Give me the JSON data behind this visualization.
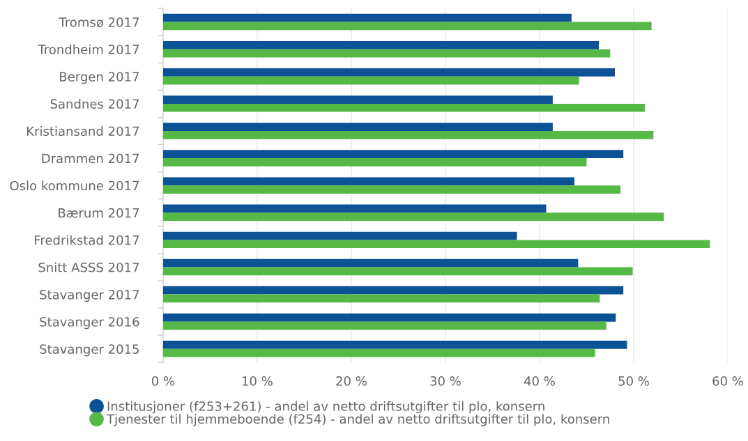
{
  "chart_data": {
    "type": "bar",
    "orientation": "horizontal",
    "categories": [
      "Tromsø 2017",
      "Trondheim 2017",
      "Bergen 2017",
      "Sandnes 2017",
      "Kristiansand 2017",
      "Drammen 2017",
      "Oslo kommune 2017",
      "Bærum 2017",
      "Fredrikstad 2017",
      "Snitt ASSS 2017",
      "Stavanger 2017",
      "Stavanger 2016",
      "Stavanger 2015"
    ],
    "series": [
      {
        "name": "Institusjoner (f253+261) - andel av netto driftsutgifter til plo, konsern",
        "color": "#0b5394",
        "values": [
          43.4,
          46.3,
          48.0,
          41.4,
          41.4,
          48.9,
          43.7,
          40.7,
          37.6,
          44.1,
          48.9,
          48.1,
          49.3
        ]
      },
      {
        "name": "Tjenester til hjemmeboende (f254) - andel av netto driftsutgifter til plo, konsern",
        "color": "#56b947",
        "values": [
          51.9,
          47.5,
          44.2,
          51.2,
          52.1,
          45.0,
          48.6,
          53.2,
          58.1,
          49.9,
          46.4,
          47.1,
          45.9
        ]
      }
    ],
    "xlim": [
      0,
      60
    ],
    "xticks": [
      {
        "value": 0,
        "label": "0 %"
      },
      {
        "value": 10,
        "label": "10 %"
      },
      {
        "value": 20,
        "label": "20 %"
      },
      {
        "value": 30,
        "label": "30 %"
      },
      {
        "value": 40,
        "label": "40 %"
      },
      {
        "value": 50,
        "label": "50 %"
      },
      {
        "value": 60,
        "label": "60 %"
      }
    ],
    "grid": "x",
    "legend": "bottom"
  }
}
